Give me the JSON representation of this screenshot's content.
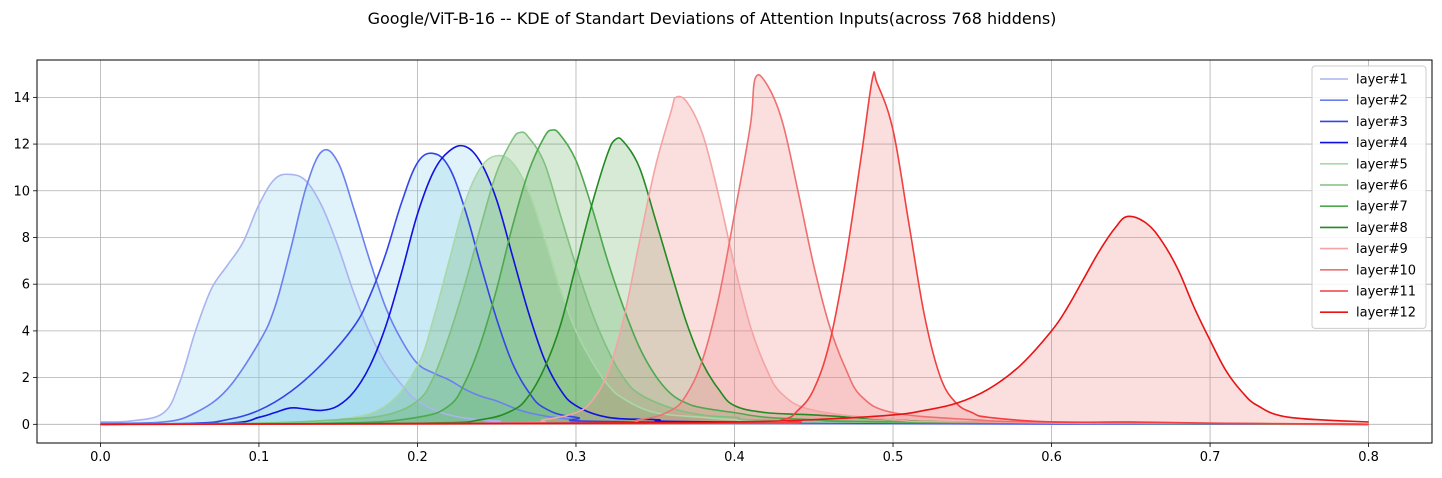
{
  "chart_data": {
    "type": "area",
    "title": "Google/ViT-B-16 -- KDE of Standart Deviations of Attention Inputs(across 768 hiddens)",
    "xlabel": "",
    "ylabel": "",
    "xlim": [
      -0.04,
      0.84
    ],
    "ylim": [
      -0.8,
      15.6
    ],
    "xticks": [
      0.0,
      0.1,
      0.2,
      0.3,
      0.4,
      0.5,
      0.6,
      0.7,
      0.8
    ],
    "xtick_labels": [
      "0.0",
      "0.1",
      "0.2",
      "0.3",
      "0.4",
      "0.5",
      "0.6",
      "0.7",
      "0.8"
    ],
    "yticks": [
      0,
      2,
      4,
      6,
      8,
      10,
      12,
      14
    ],
    "ytick_labels": [
      "0",
      "2",
      "4",
      "6",
      "8",
      "10",
      "12",
      "14"
    ],
    "grid": true,
    "legend_position": "top-right",
    "series": [
      {
        "name": "layer#1",
        "color": "#aab4f0",
        "fill": "#87ceeb",
        "fill_opacity": 0.25,
        "points": [
          [
            0.0,
            0.1
          ],
          [
            0.02,
            0.15
          ],
          [
            0.04,
            0.5
          ],
          [
            0.05,
            1.8
          ],
          [
            0.06,
            4.0
          ],
          [
            0.07,
            5.8
          ],
          [
            0.08,
            6.8
          ],
          [
            0.09,
            7.8
          ],
          [
            0.1,
            9.4
          ],
          [
            0.11,
            10.5
          ],
          [
            0.12,
            10.7
          ],
          [
            0.13,
            10.4
          ],
          [
            0.14,
            9.3
          ],
          [
            0.15,
            7.6
          ],
          [
            0.16,
            5.6
          ],
          [
            0.17,
            3.9
          ],
          [
            0.18,
            2.6
          ],
          [
            0.19,
            1.7
          ],
          [
            0.2,
            1.0
          ],
          [
            0.22,
            0.4
          ],
          [
            0.25,
            0.15
          ],
          [
            0.3,
            0.05
          ],
          [
            0.8,
            0.0
          ]
        ]
      },
      {
        "name": "layer#2",
        "color": "#6b7ff0",
        "fill": "#87ceeb",
        "fill_opacity": 0.25,
        "points": [
          [
            0.0,
            0.05
          ],
          [
            0.04,
            0.1
          ],
          [
            0.06,
            0.5
          ],
          [
            0.08,
            1.5
          ],
          [
            0.1,
            3.5
          ],
          [
            0.11,
            5.0
          ],
          [
            0.12,
            7.5
          ],
          [
            0.13,
            10.2
          ],
          [
            0.14,
            11.7
          ],
          [
            0.15,
            11.2
          ],
          [
            0.16,
            9.2
          ],
          [
            0.17,
            7.0
          ],
          [
            0.18,
            5.0
          ],
          [
            0.19,
            3.6
          ],
          [
            0.2,
            2.6
          ],
          [
            0.21,
            2.2
          ],
          [
            0.22,
            1.9
          ],
          [
            0.23,
            1.5
          ],
          [
            0.24,
            1.2
          ],
          [
            0.25,
            1.0
          ],
          [
            0.27,
            0.5
          ],
          [
            0.3,
            0.2
          ],
          [
            0.35,
            0.05
          ],
          [
            0.8,
            0.0
          ]
        ]
      },
      {
        "name": "layer#3",
        "color": "#3345e6",
        "fill": "#87ceeb",
        "fill_opacity": 0.25,
        "points": [
          [
            0.0,
            0.0
          ],
          [
            0.06,
            0.05
          ],
          [
            0.08,
            0.2
          ],
          [
            0.1,
            0.6
          ],
          [
            0.12,
            1.4
          ],
          [
            0.14,
            2.6
          ],
          [
            0.16,
            4.2
          ],
          [
            0.17,
            5.5
          ],
          [
            0.18,
            7.3
          ],
          [
            0.19,
            9.5
          ],
          [
            0.2,
            11.2
          ],
          [
            0.21,
            11.6
          ],
          [
            0.22,
            11.0
          ],
          [
            0.23,
            9.2
          ],
          [
            0.24,
            6.8
          ],
          [
            0.25,
            4.5
          ],
          [
            0.26,
            2.6
          ],
          [
            0.27,
            1.4
          ],
          [
            0.28,
            0.7
          ],
          [
            0.3,
            0.3
          ],
          [
            0.35,
            0.1
          ],
          [
            0.8,
            0.0
          ]
        ]
      },
      {
        "name": "layer#4",
        "color": "#1010e0",
        "fill": "#87ceeb",
        "fill_opacity": 0.25,
        "points": [
          [
            0.0,
            0.0
          ],
          [
            0.08,
            0.05
          ],
          [
            0.1,
            0.3
          ],
          [
            0.11,
            0.5
          ],
          [
            0.12,
            0.7
          ],
          [
            0.13,
            0.65
          ],
          [
            0.14,
            0.6
          ],
          [
            0.15,
            0.8
          ],
          [
            0.16,
            1.4
          ],
          [
            0.17,
            2.5
          ],
          [
            0.18,
            4.2
          ],
          [
            0.19,
            6.5
          ],
          [
            0.2,
            9.0
          ],
          [
            0.21,
            10.8
          ],
          [
            0.22,
            11.7
          ],
          [
            0.23,
            11.9
          ],
          [
            0.24,
            11.2
          ],
          [
            0.25,
            9.6
          ],
          [
            0.26,
            7.2
          ],
          [
            0.27,
            4.8
          ],
          [
            0.28,
            2.8
          ],
          [
            0.29,
            1.5
          ],
          [
            0.3,
            0.8
          ],
          [
            0.32,
            0.3
          ],
          [
            0.35,
            0.2
          ],
          [
            0.4,
            0.1
          ],
          [
            0.8,
            0.0
          ]
        ]
      },
      {
        "name": "layer#5",
        "color": "#a8d8a8",
        "fill": "#5aaa5a",
        "fill_opacity": 0.25,
        "points": [
          [
            0.0,
            0.0
          ],
          [
            0.1,
            0.05
          ],
          [
            0.15,
            0.2
          ],
          [
            0.18,
            0.8
          ],
          [
            0.2,
            2.5
          ],
          [
            0.21,
            4.5
          ],
          [
            0.22,
            7.0
          ],
          [
            0.23,
            9.5
          ],
          [
            0.24,
            11.0
          ],
          [
            0.25,
            11.5
          ],
          [
            0.26,
            11.2
          ],
          [
            0.27,
            10.0
          ],
          [
            0.28,
            8.0
          ],
          [
            0.29,
            5.8
          ],
          [
            0.3,
            4.0
          ],
          [
            0.31,
            2.7
          ],
          [
            0.32,
            1.7
          ],
          [
            0.33,
            1.1
          ],
          [
            0.35,
            0.5
          ],
          [
            0.38,
            0.3
          ],
          [
            0.4,
            0.2
          ],
          [
            0.45,
            0.1
          ],
          [
            0.8,
            0.0
          ]
        ]
      },
      {
        "name": "layer#6",
        "color": "#80c080",
        "fill": "#5aaa5a",
        "fill_opacity": 0.25,
        "points": [
          [
            0.0,
            0.0
          ],
          [
            0.1,
            0.05
          ],
          [
            0.15,
            0.2
          ],
          [
            0.18,
            0.4
          ],
          [
            0.2,
            1.0
          ],
          [
            0.21,
            2.0
          ],
          [
            0.22,
            3.8
          ],
          [
            0.23,
            6.0
          ],
          [
            0.24,
            8.5
          ],
          [
            0.25,
            10.8
          ],
          [
            0.26,
            12.2
          ],
          [
            0.265,
            12.5
          ],
          [
            0.27,
            12.3
          ],
          [
            0.28,
            11.2
          ],
          [
            0.29,
            9.0
          ],
          [
            0.3,
            6.8
          ],
          [
            0.31,
            4.8
          ],
          [
            0.32,
            3.2
          ],
          [
            0.33,
            2.0
          ],
          [
            0.34,
            1.3
          ],
          [
            0.36,
            0.7
          ],
          [
            0.38,
            0.4
          ],
          [
            0.4,
            0.3
          ],
          [
            0.45,
            0.15
          ],
          [
            0.8,
            0.0
          ]
        ]
      },
      {
        "name": "layer#7",
        "color": "#4ea84e",
        "fill": "#5aaa5a",
        "fill_opacity": 0.25,
        "points": [
          [
            0.0,
            0.0
          ],
          [
            0.15,
            0.05
          ],
          [
            0.2,
            0.3
          ],
          [
            0.22,
            0.8
          ],
          [
            0.23,
            1.8
          ],
          [
            0.24,
            3.5
          ],
          [
            0.25,
            5.8
          ],
          [
            0.26,
            8.5
          ],
          [
            0.27,
            10.8
          ],
          [
            0.28,
            12.3
          ],
          [
            0.285,
            12.6
          ],
          [
            0.29,
            12.4
          ],
          [
            0.3,
            11.3
          ],
          [
            0.31,
            9.3
          ],
          [
            0.32,
            7.0
          ],
          [
            0.33,
            5.0
          ],
          [
            0.34,
            3.3
          ],
          [
            0.35,
            2.1
          ],
          [
            0.36,
            1.3
          ],
          [
            0.37,
            0.9
          ],
          [
            0.38,
            0.7
          ],
          [
            0.4,
            0.5
          ],
          [
            0.42,
            0.3
          ],
          [
            0.45,
            0.2
          ],
          [
            0.5,
            0.1
          ],
          [
            0.8,
            0.0
          ]
        ]
      },
      {
        "name": "layer#8",
        "color": "#228b22",
        "fill": "#5aaa5a",
        "fill_opacity": 0.25,
        "points": [
          [
            0.0,
            0.0
          ],
          [
            0.2,
            0.05
          ],
          [
            0.24,
            0.2
          ],
          [
            0.26,
            0.6
          ],
          [
            0.27,
            1.2
          ],
          [
            0.28,
            2.4
          ],
          [
            0.29,
            4.2
          ],
          [
            0.3,
            6.8
          ],
          [
            0.31,
            9.4
          ],
          [
            0.32,
            11.6
          ],
          [
            0.325,
            12.2
          ],
          [
            0.33,
            12.1
          ],
          [
            0.34,
            11.0
          ],
          [
            0.35,
            8.8
          ],
          [
            0.36,
            6.5
          ],
          [
            0.37,
            4.3
          ],
          [
            0.38,
            2.6
          ],
          [
            0.39,
            1.5
          ],
          [
            0.4,
            0.8
          ],
          [
            0.42,
            0.5
          ],
          [
            0.45,
            0.4
          ],
          [
            0.5,
            0.2
          ],
          [
            0.55,
            0.1
          ],
          [
            0.8,
            0.0
          ]
        ]
      },
      {
        "name": "layer#9",
        "color": "#f4a4a4",
        "fill": "#f08080",
        "fill_opacity": 0.25,
        "points": [
          [
            0.0,
            0.0
          ],
          [
            0.25,
            0.05
          ],
          [
            0.28,
            0.2
          ],
          [
            0.3,
            0.5
          ],
          [
            0.31,
            1.0
          ],
          [
            0.32,
            2.2
          ],
          [
            0.33,
            4.5
          ],
          [
            0.34,
            7.8
          ],
          [
            0.35,
            11.0
          ],
          [
            0.36,
            13.4
          ],
          [
            0.363,
            14.0
          ],
          [
            0.37,
            13.8
          ],
          [
            0.38,
            12.4
          ],
          [
            0.39,
            9.8
          ],
          [
            0.4,
            6.8
          ],
          [
            0.41,
            4.2
          ],
          [
            0.42,
            2.4
          ],
          [
            0.43,
            1.3
          ],
          [
            0.45,
            0.6
          ],
          [
            0.5,
            0.2
          ],
          [
            0.55,
            0.1
          ],
          [
            0.8,
            0.0
          ]
        ]
      },
      {
        "name": "layer#10",
        "color": "#ef7070",
        "fill": "#f08080",
        "fill_opacity": 0.25,
        "points": [
          [
            0.0,
            0.0
          ],
          [
            0.3,
            0.05
          ],
          [
            0.34,
            0.2
          ],
          [
            0.36,
            0.6
          ],
          [
            0.37,
            1.3
          ],
          [
            0.38,
            2.8
          ],
          [
            0.39,
            5.4
          ],
          [
            0.4,
            9.0
          ],
          [
            0.41,
            12.8
          ],
          [
            0.413,
            14.8
          ],
          [
            0.42,
            14.6
          ],
          [
            0.43,
            13.0
          ],
          [
            0.44,
            10.0
          ],
          [
            0.45,
            6.8
          ],
          [
            0.46,
            4.2
          ],
          [
            0.47,
            2.4
          ],
          [
            0.48,
            1.2
          ],
          [
            0.5,
            0.5
          ],
          [
            0.55,
            0.2
          ],
          [
            0.6,
            0.1
          ],
          [
            0.8,
            0.0
          ]
        ]
      },
      {
        "name": "layer#11",
        "color": "#f04040",
        "fill": "#f08080",
        "fill_opacity": 0.25,
        "points": [
          [
            0.0,
            0.0
          ],
          [
            0.4,
            0.05
          ],
          [
            0.43,
            0.2
          ],
          [
            0.44,
            0.6
          ],
          [
            0.45,
            1.5
          ],
          [
            0.46,
            3.5
          ],
          [
            0.47,
            7.0
          ],
          [
            0.48,
            11.5
          ],
          [
            0.487,
            14.8
          ],
          [
            0.49,
            14.6
          ],
          [
            0.5,
            12.6
          ],
          [
            0.51,
            8.6
          ],
          [
            0.52,
            4.6
          ],
          [
            0.53,
            2.0
          ],
          [
            0.54,
            0.9
          ],
          [
            0.55,
            0.5
          ],
          [
            0.56,
            0.3
          ],
          [
            0.6,
            0.1
          ],
          [
            0.65,
            0.1
          ],
          [
            0.7,
            0.05
          ],
          [
            0.8,
            0.0
          ]
        ]
      },
      {
        "name": "layer#12",
        "color": "#e81414",
        "fill": "#f08080",
        "fill_opacity": 0.25,
        "points": [
          [
            0.0,
            0.0
          ],
          [
            0.3,
            0.05
          ],
          [
            0.4,
            0.1
          ],
          [
            0.45,
            0.2
          ],
          [
            0.5,
            0.4
          ],
          [
            0.52,
            0.6
          ],
          [
            0.54,
            0.9
          ],
          [
            0.56,
            1.5
          ],
          [
            0.58,
            2.5
          ],
          [
            0.6,
            4.0
          ],
          [
            0.61,
            5.0
          ],
          [
            0.62,
            6.2
          ],
          [
            0.63,
            7.4
          ],
          [
            0.64,
            8.4
          ],
          [
            0.648,
            8.9
          ],
          [
            0.66,
            8.6
          ],
          [
            0.67,
            7.8
          ],
          [
            0.68,
            6.6
          ],
          [
            0.69,
            5.0
          ],
          [
            0.7,
            3.6
          ],
          [
            0.71,
            2.3
          ],
          [
            0.72,
            1.4
          ],
          [
            0.73,
            0.8
          ],
          [
            0.75,
            0.3
          ],
          [
            0.8,
            0.1
          ]
        ]
      }
    ]
  }
}
